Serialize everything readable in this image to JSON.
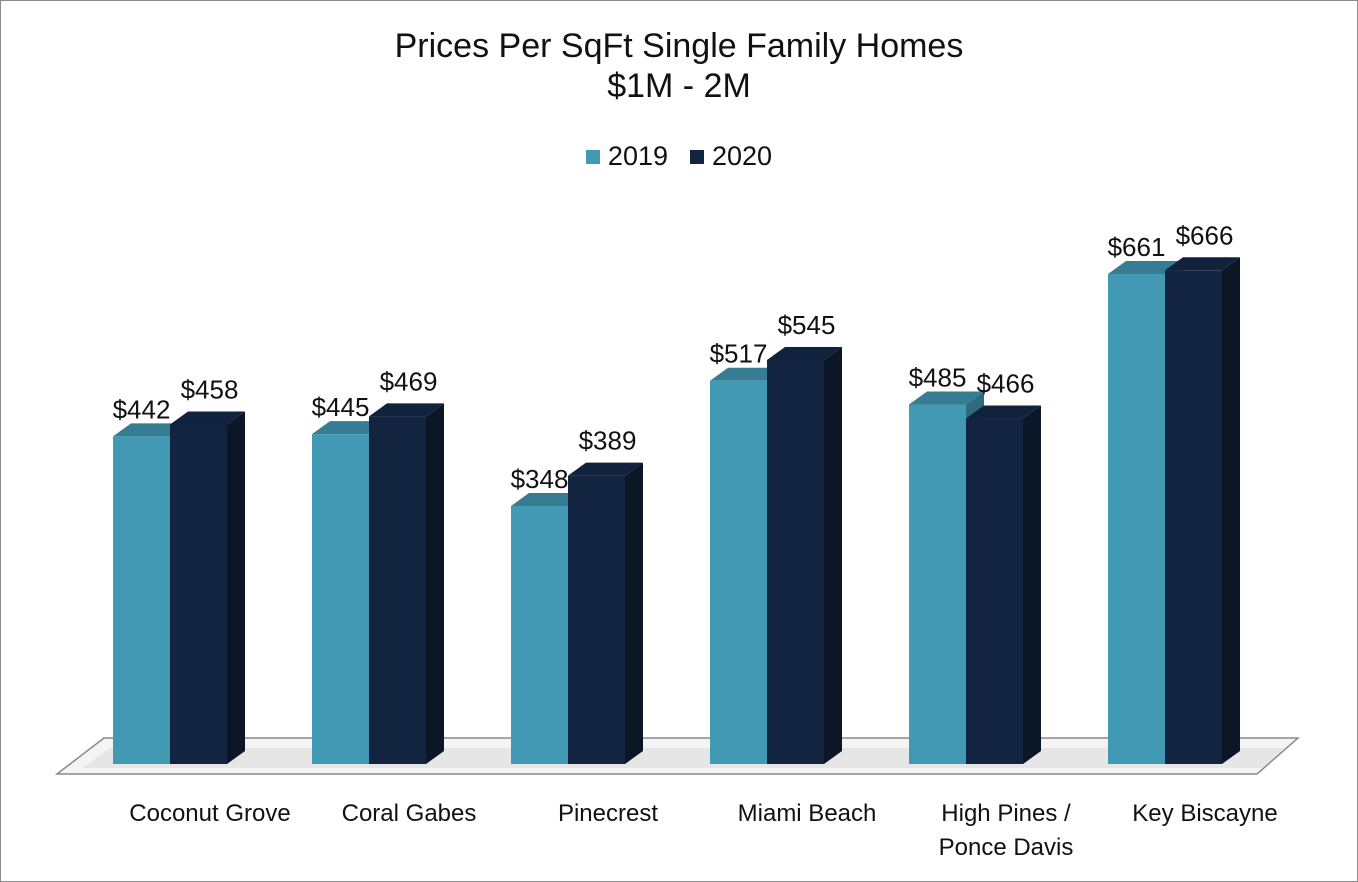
{
  "chart_data": {
    "type": "bar",
    "title": "Prices Per SqFt Single Family Homes",
    "subtitle": "$1M - 2M",
    "categories": [
      [
        "Coconut Grove"
      ],
      [
        "Coral Gabes"
      ],
      [
        "Pinecrest"
      ],
      [
        "Miami Beach"
      ],
      [
        "High Pines /",
        "Ponce Davis"
      ],
      [
        "Key Biscayne"
      ]
    ],
    "series": [
      {
        "name": "2019",
        "color": "#4299B3",
        "values": [
          442,
          445,
          348,
          517,
          485,
          661
        ],
        "labels": [
          "$442",
          "$445",
          "$348",
          "$517",
          "$485",
          "$661"
        ]
      },
      {
        "name": "2020",
        "color": "#12243F",
        "values": [
          458,
          469,
          389,
          545,
          466,
          666
        ],
        "labels": [
          "$458",
          "$469",
          "$389",
          "$545",
          "$466",
          "$666"
        ]
      }
    ],
    "ylim": [
      0,
      800
    ],
    "legend_position": "top",
    "grid": false,
    "style": "3d-column"
  }
}
